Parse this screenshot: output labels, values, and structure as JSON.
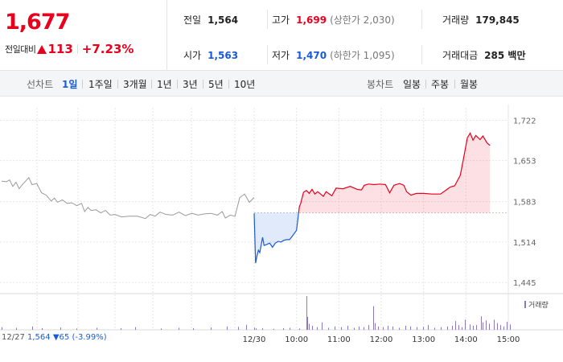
{
  "header": {
    "price": "1,677",
    "change_label": "전일대비",
    "change_value": "113",
    "change_pct": "+7.23%",
    "stats": [
      {
        "key": "전일",
        "value": "1,564",
        "tone": "neutral",
        "sub": ""
      },
      {
        "key": "고가",
        "value": "1,699",
        "tone": "up",
        "sub": "(상한가 2,030)"
      },
      {
        "key": "거래량",
        "value": "179,845",
        "tone": "neutral",
        "sub": ""
      },
      {
        "key": "시가",
        "value": "1,563",
        "tone": "dn",
        "sub": ""
      },
      {
        "key": "저가",
        "value": "1,470",
        "tone": "dn",
        "sub": "(하한가 1,095)"
      },
      {
        "key": "거래대금",
        "value": "285 백만",
        "tone": "neutral",
        "sub": ""
      }
    ]
  },
  "period_bar": {
    "line_label": "선차트",
    "line_periods": [
      "1일",
      "1주일",
      "3개월",
      "1년",
      "3년",
      "5년",
      "10년"
    ],
    "selected": "1일",
    "candle_label": "봉차트",
    "candle_periods": [
      "일봉",
      "주봉",
      "월봉"
    ]
  },
  "colors": {
    "up": "#e8001c",
    "down": "#1a5ad8",
    "prev": "#9a9a9a",
    "volume": "#8a7ab8"
  },
  "chart_data": {
    "type": "line",
    "y_ticks": [
      "1,722",
      "1,653",
      "1,583",
      "1,514",
      "1,445"
    ],
    "y_tick_values": [
      1722,
      1653,
      1583,
      1514,
      1445
    ],
    "ylim": [
      1430,
      1735
    ],
    "baseline": 1564,
    "x_ticks": [
      "12/30",
      "10:00",
      "11:00",
      "12:00",
      "13:00",
      "14:00",
      "15:00"
    ],
    "x_tick_minutes": [
      0,
      60,
      120,
      180,
      240,
      300,
      360
    ],
    "prev_day": {
      "name": "12/27",
      "note_date": "12/27",
      "note_value": "1,564",
      "note_change": "▼65 (-3.99%)",
      "points": [
        [
          0,
          1618
        ],
        [
          6,
          1617
        ],
        [
          10,
          1620
        ],
        [
          14,
          1609
        ],
        [
          18,
          1616
        ],
        [
          22,
          1605
        ],
        [
          26,
          1612
        ],
        [
          30,
          1618
        ],
        [
          34,
          1624
        ],
        [
          38,
          1612
        ],
        [
          44,
          1614
        ],
        [
          50,
          1598
        ],
        [
          56,
          1594
        ],
        [
          62,
          1584
        ],
        [
          66,
          1589
        ],
        [
          70,
          1582
        ],
        [
          76,
          1586
        ],
        [
          82,
          1580
        ],
        [
          88,
          1581
        ],
        [
          94,
          1576
        ],
        [
          100,
          1580
        ],
        [
          104,
          1566
        ],
        [
          108,
          1573
        ],
        [
          112,
          1568
        ],
        [
          118,
          1569
        ],
        [
          124,
          1564
        ],
        [
          130,
          1568
        ],
        [
          136,
          1560
        ],
        [
          142,
          1561
        ],
        [
          150,
          1557
        ],
        [
          160,
          1558
        ],
        [
          170,
          1558
        ],
        [
          180,
          1554
        ],
        [
          186,
          1561
        ],
        [
          192,
          1558
        ],
        [
          198,
          1565
        ],
        [
          206,
          1561
        ],
        [
          214,
          1560
        ],
        [
          222,
          1565
        ],
        [
          230,
          1559
        ],
        [
          238,
          1563
        ],
        [
          246,
          1560
        ],
        [
          254,
          1562
        ],
        [
          262,
          1563
        ],
        [
          270,
          1560
        ],
        [
          276,
          1566
        ],
        [
          280,
          1555
        ],
        [
          286,
          1560
        ],
        [
          292,
          1558
        ],
        [
          298,
          1590
        ],
        [
          304,
          1596
        ],
        [
          310,
          1582
        ],
        [
          316,
          1590
        ]
      ]
    },
    "today": {
      "name": "12/30",
      "points": [
        [
          0,
          1563
        ],
        [
          2,
          1478
        ],
        [
          4,
          1490
        ],
        [
          6,
          1500
        ],
        [
          8,
          1496
        ],
        [
          12,
          1522
        ],
        [
          14,
          1508
        ],
        [
          18,
          1510
        ],
        [
          22,
          1512
        ],
        [
          26,
          1505
        ],
        [
          30,
          1512
        ],
        [
          34,
          1515
        ],
        [
          38,
          1514
        ],
        [
          42,
          1517
        ],
        [
          46,
          1518
        ],
        [
          50,
          1518
        ],
        [
          54,
          1524
        ],
        [
          60,
          1534
        ],
        [
          64,
          1574
        ],
        [
          66,
          1580
        ],
        [
          70,
          1599
        ],
        [
          74,
          1602
        ],
        [
          78,
          1597
        ],
        [
          82,
          1604
        ],
        [
          86,
          1596
        ],
        [
          90,
          1600
        ],
        [
          94,
          1596
        ],
        [
          98,
          1592
        ],
        [
          102,
          1600
        ],
        [
          110,
          1593
        ],
        [
          116,
          1606
        ],
        [
          126,
          1605
        ],
        [
          136,
          1609
        ],
        [
          146,
          1604
        ],
        [
          152,
          1603
        ],
        [
          156,
          1611
        ],
        [
          162,
          1613
        ],
        [
          170,
          1612
        ],
        [
          178,
          1613
        ],
        [
          186,
          1612
        ],
        [
          192,
          1598
        ],
        [
          198,
          1611
        ],
        [
          206,
          1614
        ],
        [
          212,
          1611
        ],
        [
          216,
          1600
        ],
        [
          222,
          1594
        ],
        [
          230,
          1597
        ],
        [
          240,
          1597
        ],
        [
          252,
          1596
        ],
        [
          264,
          1596
        ],
        [
          272,
          1603
        ],
        [
          278,
          1608
        ],
        [
          284,
          1610
        ],
        [
          292,
          1628
        ],
        [
          296,
          1653
        ],
        [
          302,
          1692
        ],
        [
          306,
          1700
        ],
        [
          310,
          1688
        ],
        [
          314,
          1696
        ],
        [
          320,
          1689
        ],
        [
          324,
          1695
        ],
        [
          330,
          1683
        ],
        [
          334,
          1679
        ]
      ]
    },
    "volume": {
      "name": "거래량",
      "max": 100,
      "bars": [
        [
          2,
          8
        ],
        [
          20,
          6
        ],
        [
          40,
          10
        ],
        [
          52,
          5
        ],
        [
          75,
          7
        ],
        [
          95,
          4
        ],
        [
          120,
          6
        ],
        [
          150,
          5
        ],
        [
          168,
          8
        ],
        [
          200,
          4
        ],
        [
          222,
          6
        ],
        [
          240,
          5
        ],
        [
          262,
          7
        ],
        [
          282,
          10
        ],
        [
          296,
          9
        ],
        [
          306,
          15
        ],
        [
          316,
          6
        ],
        [
          318,
          4
        ],
        [
          326,
          5
        ],
        [
          340,
          3
        ],
        [
          352,
          5
        ],
        [
          360,
          6
        ],
        [
          372,
          4
        ],
        [
          381,
          100
        ],
        [
          382,
          38
        ],
        [
          384,
          18
        ],
        [
          388,
          12
        ],
        [
          394,
          8
        ],
        [
          400,
          22
        ],
        [
          408,
          6
        ],
        [
          416,
          10
        ],
        [
          424,
          8
        ],
        [
          432,
          12
        ],
        [
          440,
          6
        ],
        [
          446,
          10
        ],
        [
          452,
          8
        ],
        [
          458,
          14
        ],
        [
          464,
          70
        ],
        [
          466,
          20
        ],
        [
          470,
          10
        ],
        [
          476,
          8
        ],
        [
          482,
          12
        ],
        [
          488,
          10
        ],
        [
          496,
          6
        ],
        [
          504,
          12
        ],
        [
          510,
          10
        ],
        [
          518,
          8
        ],
        [
          526,
          9
        ],
        [
          532,
          14
        ],
        [
          540,
          6
        ],
        [
          548,
          8
        ],
        [
          556,
          10
        ],
        [
          562,
          12
        ],
        [
          566,
          26
        ],
        [
          570,
          14
        ],
        [
          574,
          8
        ],
        [
          578,
          30
        ],
        [
          584,
          16
        ],
        [
          588,
          12
        ],
        [
          592,
          14
        ],
        [
          598,
          40
        ],
        [
          600,
          22
        ],
        [
          604,
          28
        ],
        [
          608,
          18
        ],
        [
          614,
          30
        ],
        [
          618,
          20
        ],
        [
          622,
          14
        ],
        [
          626,
          10
        ],
        [
          630,
          24
        ],
        [
          634,
          16
        ]
      ]
    }
  }
}
